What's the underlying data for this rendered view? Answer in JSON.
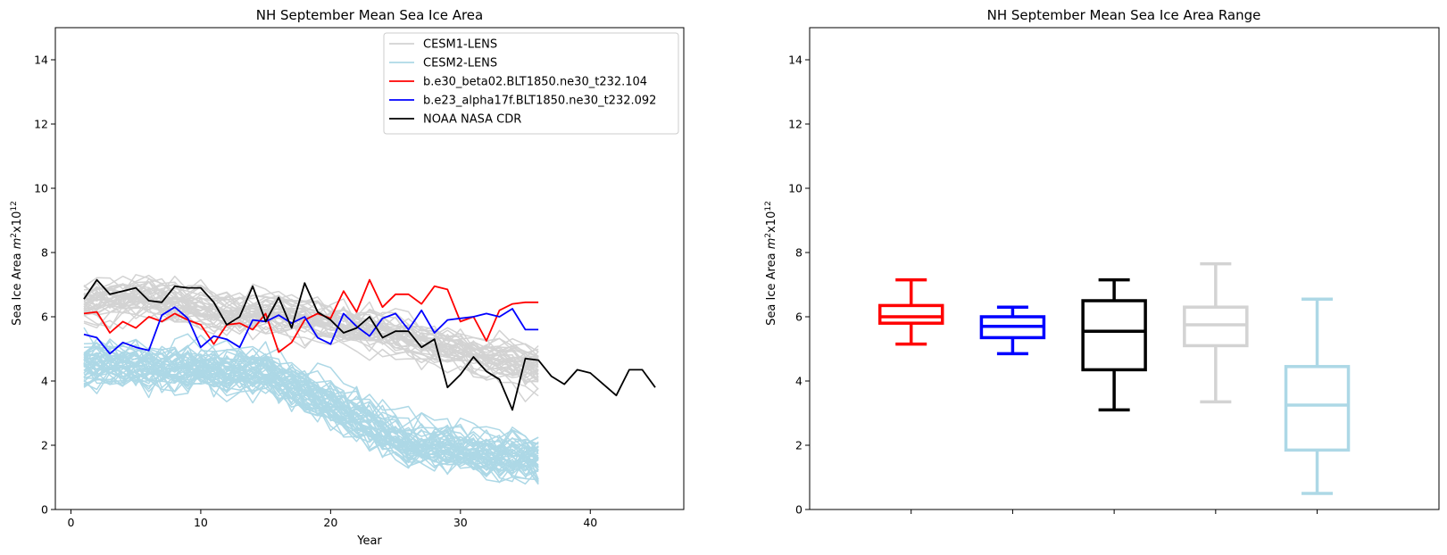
{
  "chart_data": [
    {
      "type": "line",
      "title": "NH September Mean Sea Ice Area",
      "xlabel": "Year",
      "ylabel": "Sea Ice Area m²x10¹²",
      "xlim": [
        -1.2,
        47.2
      ],
      "ylim": [
        0,
        15
      ],
      "xticks": [
        0,
        10,
        20,
        30,
        40
      ],
      "yticks": [
        0,
        2,
        4,
        6,
        8,
        10,
        12,
        14
      ],
      "grid": false,
      "legend_position": "top-right",
      "ensemble_note": "CESM1-LENS and CESM2-LENS are drawn as many overlapping member curves (years 1-36); the member values are generated by the page script to reproduce the visible spread.",
      "series": [
        {
          "name": "CESM1-LENS",
          "color": "#d3d3d3",
          "ensemble": true
        },
        {
          "name": "CESM2-LENS",
          "color": "#add8e6",
          "ensemble": true
        },
        {
          "name": "b.e30_beta02.BLT1850.ne30_t232.104",
          "color": "#ff0000",
          "x": [
            1,
            2,
            3,
            4,
            5,
            6,
            7,
            8,
            9,
            10,
            11,
            12,
            13,
            14,
            15,
            16,
            17,
            18,
            19,
            20,
            21,
            22,
            23,
            24,
            25,
            26,
            27,
            28,
            29,
            30,
            31,
            32,
            33,
            34,
            35,
            36
          ],
          "values": [
            6.1,
            6.15,
            5.5,
            5.85,
            5.65,
            6.0,
            5.85,
            6.1,
            5.9,
            5.75,
            5.15,
            5.75,
            5.8,
            5.6,
            6.1,
            4.9,
            5.2,
            5.9,
            6.1,
            5.95,
            6.8,
            6.15,
            7.15,
            6.3,
            6.7,
            6.7,
            6.4,
            6.95,
            6.85,
            5.85,
            6.0,
            5.25,
            6.2,
            6.4,
            6.45,
            6.45
          ]
        },
        {
          "name": "b.e23_alpha17f.BLT1850.ne30_t232.092",
          "color": "#0000ff",
          "x": [
            1,
            2,
            3,
            4,
            5,
            6,
            7,
            8,
            9,
            10,
            11,
            12,
            13,
            14,
            15,
            16,
            17,
            18,
            19,
            20,
            21,
            22,
            23,
            24,
            25,
            26,
            27,
            28,
            29,
            30,
            31,
            32,
            33,
            34,
            35,
            36
          ],
          "values": [
            5.45,
            5.35,
            4.85,
            5.2,
            5.05,
            4.95,
            6.05,
            6.3,
            5.95,
            5.05,
            5.4,
            5.3,
            5.05,
            5.9,
            5.85,
            6.05,
            5.8,
            6.0,
            5.35,
            5.15,
            6.1,
            5.7,
            5.4,
            5.95,
            6.1,
            5.6,
            6.2,
            5.5,
            5.9,
            5.95,
            6.0,
            6.1,
            6.0,
            6.25,
            5.6,
            5.6
          ]
        },
        {
          "name": "NOAA NASA CDR",
          "color": "#000000",
          "x": [
            1,
            2,
            3,
            4,
            5,
            6,
            7,
            8,
            9,
            10,
            11,
            12,
            13,
            14,
            15,
            16,
            17,
            18,
            19,
            20,
            21,
            22,
            23,
            24,
            25,
            26,
            27,
            28,
            29,
            30,
            31,
            32,
            33,
            34,
            35,
            36,
            37,
            38,
            39,
            40,
            41,
            42,
            43,
            44,
            45
          ],
          "values": [
            6.55,
            7.15,
            6.7,
            6.8,
            6.9,
            6.5,
            6.45,
            6.95,
            6.9,
            6.9,
            6.45,
            5.75,
            6.0,
            6.95,
            5.85,
            6.6,
            5.65,
            7.05,
            6.15,
            5.9,
            5.5,
            5.65,
            6.0,
            5.35,
            5.55,
            5.55,
            5.05,
            5.3,
            3.8,
            4.2,
            4.75,
            4.3,
            4.05,
            3.1,
            4.7,
            4.65,
            4.15,
            3.9,
            4.35,
            4.25,
            3.9,
            3.55,
            4.35,
            4.35,
            3.8
          ]
        }
      ]
    },
    {
      "type": "box",
      "title": "NH September Mean Sea Ice Area Range",
      "xlabel": "",
      "ylabel": "Sea Ice Area m²x10¹²",
      "ylim": [
        0,
        15
      ],
      "yticks": [
        0,
        2,
        4,
        6,
        8,
        10,
        12,
        14
      ],
      "grid": false,
      "boxes": [
        {
          "color": "#ff0000",
          "whisker_low": 5.15,
          "q1": 5.8,
          "median": 6.0,
          "q3": 6.35,
          "whisker_high": 7.15
        },
        {
          "color": "#0000ff",
          "whisker_low": 4.85,
          "q1": 5.35,
          "median": 5.7,
          "q3": 6.0,
          "whisker_high": 6.3
        },
        {
          "color": "#000000",
          "whisker_low": 3.1,
          "q1": 4.35,
          "median": 5.55,
          "q3": 6.5,
          "whisker_high": 7.15
        },
        {
          "color": "#d3d3d3",
          "whisker_low": 3.35,
          "q1": 5.1,
          "median": 5.75,
          "q3": 6.3,
          "whisker_high": 7.65
        },
        {
          "color": "#add8e6",
          "whisker_low": 0.5,
          "q1": 1.85,
          "median": 3.25,
          "q3": 4.45,
          "whisker_high": 6.55
        }
      ]
    }
  ]
}
